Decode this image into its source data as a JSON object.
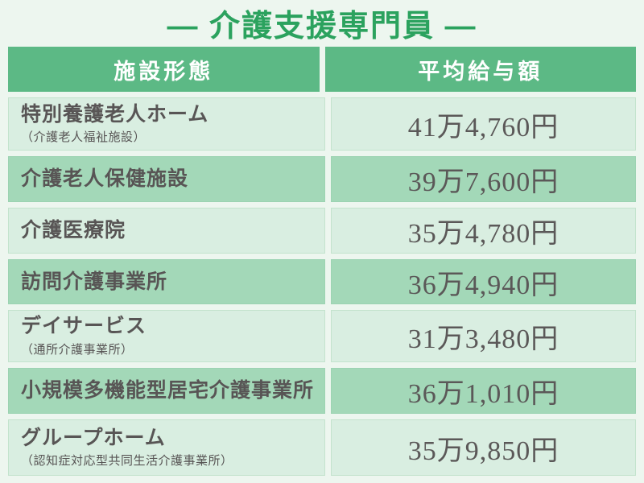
{
  "title": "— 介護支援専門員 —",
  "table": {
    "headers": [
      "施設形態",
      "平均給与額"
    ],
    "rows": [
      {
        "facility": "特別養護老人ホーム",
        "note": "（介護老人福祉施設）",
        "salary": "41万4,760円"
      },
      {
        "facility": "介護老人保健施設",
        "note": "",
        "salary": "39万7,600円"
      },
      {
        "facility": "介護医療院",
        "note": "",
        "salary": "35万4,780円"
      },
      {
        "facility": "訪問介護事業所",
        "note": "",
        "salary": "36万4,940円"
      },
      {
        "facility": "デイサービス",
        "note": "（通所介護事業所）",
        "salary": "31万3,480円"
      },
      {
        "facility": "小規模多機能型居宅介護事業所",
        "note": "",
        "salary": "36万1,010円"
      },
      {
        "facility": "グループホーム",
        "note": "（認知症対応型共同生活介護事業所）",
        "salary": "35万9,850円"
      }
    ]
  },
  "colors": {
    "page_background": "#edf6ef",
    "title_green": "#2ba25e",
    "header_green": "#5cb985",
    "header_text": "#ffffff",
    "row_light": "#d9eee1",
    "row_light_border": "#c3e3cd",
    "row_medium": "#a3d8b8",
    "text_gray": "#585555"
  },
  "chart_data": {
    "type": "table",
    "title": "介護支援専門員",
    "columns": [
      "施設形態",
      "平均給与額"
    ],
    "rows": [
      [
        "特別養護老人ホーム（介護老人福祉施設）",
        "41万4,760円"
      ],
      [
        "介護老人保健施設",
        "39万7,600円"
      ],
      [
        "介護医療院",
        "35万4,780円"
      ],
      [
        "訪問介護事業所",
        "36万4,940円"
      ],
      [
        "デイサービス（通所介護事業所）",
        "31万3,480円"
      ],
      [
        "小規模多機能型居宅介護事業所",
        "36万1,010円"
      ],
      [
        "グループホーム（認知症対応型共同生活介護事業所）",
        "35万9,850円"
      ]
    ],
    "values_yen": [
      414760,
      397600,
      354780,
      364940,
      313480,
      361010,
      359850
    ]
  }
}
